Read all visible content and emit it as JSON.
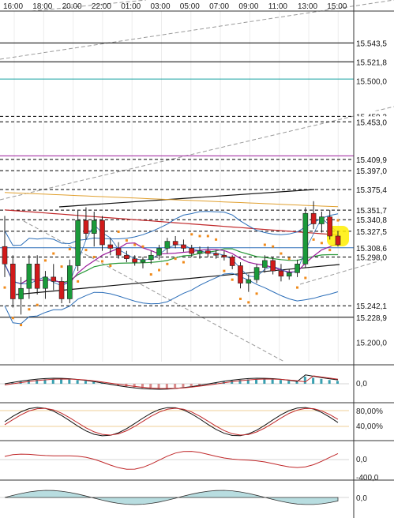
{
  "chart_data": {
    "type": "candlestick",
    "x_ticks": [
      "16:00",
      "18:00",
      "20:00",
      "22:00",
      "01:00",
      "03:00",
      "05:00",
      "07:00",
      "09:00",
      "11:00",
      "13:00",
      "15:00"
    ],
    "y_range": [
      15178,
      15580
    ],
    "y_ticks": [
      "15.500,0",
      "15.200,0"
    ],
    "price_levels": [
      {
        "label": "15.543,5",
        "value": 15543.5,
        "color": "#000000",
        "style": "solid"
      },
      {
        "label": "15.521,8",
        "value": 15521.8,
        "color": "#000000",
        "style": "solid"
      },
      {
        "label": "",
        "value": 15502,
        "color": "#1aa3a3",
        "style": "solid"
      },
      {
        "label": "15.459,2",
        "value": 15459.2,
        "color": "#000000",
        "style": "dashed"
      },
      {
        "label": "15.453,0",
        "value": 15453.0,
        "color": "#000000",
        "style": "dashed"
      },
      {
        "label": "",
        "value": 15414,
        "color": "#9b1c9b",
        "style": "solid"
      },
      {
        "label": "15.409,9",
        "value": 15409.9,
        "color": "#000000",
        "style": "dashed"
      },
      {
        "label": "15.397,0",
        "value": 15397.0,
        "color": "#000000",
        "style": "dashed"
      },
      {
        "label": "15.375,4",
        "value": 15375.4,
        "color": "#000000",
        "style": "dashed"
      },
      {
        "label": "15.351,7",
        "value": 15351.7,
        "color": "#000000",
        "style": "dashed"
      },
      {
        "label": "15.340,8",
        "value": 15340.8,
        "color": "#000000",
        "style": "dashed"
      },
      {
        "label": "15.327,5",
        "value": 15327.5,
        "color": "#000000",
        "style": "dashed"
      },
      {
        "label": "15.308,6",
        "value": 15308.6,
        "color": "#2a6db8",
        "style": "solid"
      },
      {
        "label": "15.298,0",
        "value": 15298.0,
        "color": "#000000",
        "style": "dashed"
      },
      {
        "label": "15.242,1",
        "value": 15242.1,
        "color": "#000000",
        "style": "dashed"
      },
      {
        "label": "15.228,9",
        "value": 15228.9,
        "color": "#000000",
        "style": "solid"
      }
    ],
    "candles": [
      [
        15310,
        15345,
        15275,
        15290
      ],
      [
        15290,
        15300,
        15240,
        15250
      ],
      [
        15250,
        15275,
        15232,
        15262
      ],
      [
        15262,
        15300,
        15250,
        15290
      ],
      [
        15290,
        15300,
        15255,
        15262
      ],
      [
        15262,
        15282,
        15250,
        15275
      ],
      [
        15275,
        15290,
        15260,
        15270
      ],
      [
        15270,
        15275,
        15245,
        15250
      ],
      [
        15250,
        15295,
        15245,
        15288
      ],
      [
        15288,
        15352,
        15282,
        15340
      ],
      [
        15340,
        15355,
        15318,
        15325
      ],
      [
        15325,
        15350,
        15310,
        15340
      ],
      [
        15340,
        15345,
        15305,
        15312
      ],
      [
        15312,
        15320,
        15300,
        15308
      ],
      [
        15308,
        15315,
        15296,
        15300
      ],
      [
        15300,
        15305,
        15292,
        15296
      ],
      [
        15296,
        15300,
        15288,
        15292
      ],
      [
        15292,
        15298,
        15285,
        15295
      ],
      [
        15295,
        15305,
        15290,
        15300
      ],
      [
        15300,
        15312,
        15295,
        15308
      ],
      [
        15308,
        15320,
        15302,
        15316
      ],
      [
        15316,
        15322,
        15308,
        15312
      ],
      [
        15312,
        15318,
        15304,
        15308
      ],
      [
        15308,
        15312,
        15298,
        15302
      ],
      [
        15302,
        15310,
        15296,
        15305
      ],
      [
        15305,
        15310,
        15298,
        15302
      ],
      [
        15302,
        15306,
        15296,
        15300
      ],
      [
        15300,
        15305,
        15294,
        15298
      ],
      [
        15298,
        15300,
        15284,
        15288
      ],
      [
        15288,
        15292,
        15262,
        15268
      ],
      [
        15268,
        15278,
        15258,
        15272
      ],
      [
        15272,
        15290,
        15268,
        15286
      ],
      [
        15286,
        15300,
        15280,
        15294
      ],
      [
        15294,
        15298,
        15278,
        15282
      ],
      [
        15282,
        15290,
        15270,
        15276
      ],
      [
        15276,
        15284,
        15272,
        15280
      ],
      [
        15280,
        15295,
        15275,
        15290
      ],
      [
        15290,
        15355,
        15286,
        15348
      ],
      [
        15348,
        15362,
        15330,
        15336
      ],
      [
        15336,
        15350,
        15326,
        15344
      ],
      [
        15344,
        15352,
        15318,
        15322
      ],
      [
        15322,
        15328,
        15310,
        15312
      ]
    ],
    "indicators": [
      {
        "label": "0,0"
      },
      {
        "label": "80,00%"
      },
      {
        "label": "40,00%"
      },
      {
        "label": "0,0"
      },
      {
        "label": "-400,0"
      },
      {
        "label": "0,0"
      }
    ],
    "colors": {
      "up": "#1a9a3a",
      "down": "#d11a1a",
      "bollinger": "#2a6db8",
      "ma_red": "#c0282a",
      "ma_green": "#2a9a3a",
      "ma_orange": "#e0a030",
      "ma_purple": "#9b1c9b",
      "psar": "#f08a1a",
      "highlight": "#ffee00"
    }
  }
}
